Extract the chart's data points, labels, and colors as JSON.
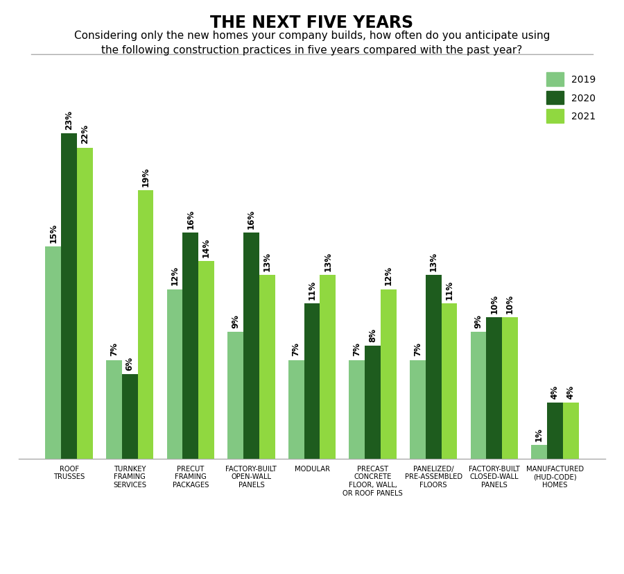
{
  "title": "THE NEXT FIVE YEARS",
  "subtitle": "Considering only the new homes your company builds, how often do you anticipate using\nthe following construction practices in five years compared with the past year?",
  "categories": [
    "ROOF\nTRUSSES",
    "TURNKEY\nFRAMING\nSERVICES",
    "PRECUT\nFRAMING\nPACKAGES",
    "FACTORY-BUILT\nOPEN-WALL\nPANELS",
    "MODULAR",
    "PRECAST\nCONCRETE\nFLOOR, WALL,\nOR ROOF PANELS",
    "PANELIZED/\nPRE-ASSEMBLED\nFLOORS",
    "FACTORY-BUILT\nCLOSED-WALL\nPANELS",
    "MANUFACTURED\n(HUD-CODE)\nHOMES"
  ],
  "values_2019": [
    15,
    7,
    12,
    9,
    7,
    7,
    7,
    9,
    1
  ],
  "values_2020": [
    23,
    6,
    16,
    16,
    11,
    8,
    13,
    10,
    4
  ],
  "values_2021": [
    22,
    19,
    14,
    13,
    13,
    12,
    11,
    10,
    4
  ],
  "color_2019": "#82c882",
  "color_2020": "#1e5c1e",
  "color_2021": "#90d840",
  "background_color": "#ffffff",
  "title_fontsize": 17,
  "subtitle_fontsize": 11,
  "ylim": [
    0,
    28
  ],
  "legend_labels": [
    "2019",
    "2020",
    "2021"
  ],
  "bar_width": 0.26,
  "grid_color": "#d0d0d0",
  "label_fontsize": 8.5
}
